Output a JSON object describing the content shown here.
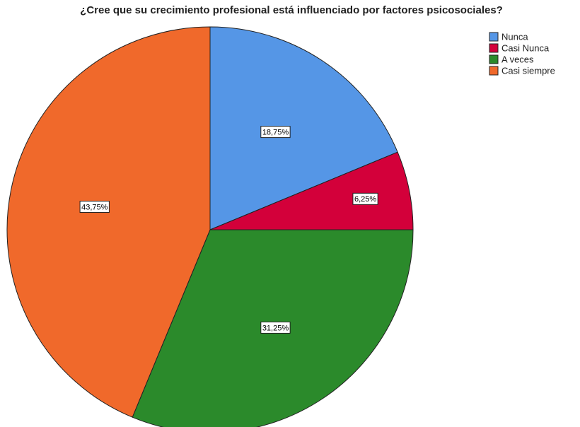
{
  "chart_data": {
    "type": "pie",
    "title": "¿Cree que su crecimiento profesional está influenciado por factores psicosociales?",
    "categories": [
      "Nunca",
      "Casi Nunca",
      "A veces",
      "Casi siempre"
    ],
    "values": [
      18.75,
      6.25,
      31.25,
      43.75
    ],
    "value_labels": [
      "18,75%",
      "6,25%",
      "31,25%",
      "43,75%"
    ],
    "colors": [
      "#5596e6",
      "#d3003a",
      "#2b8a2b",
      "#f0692b"
    ],
    "legend": "top-right"
  }
}
